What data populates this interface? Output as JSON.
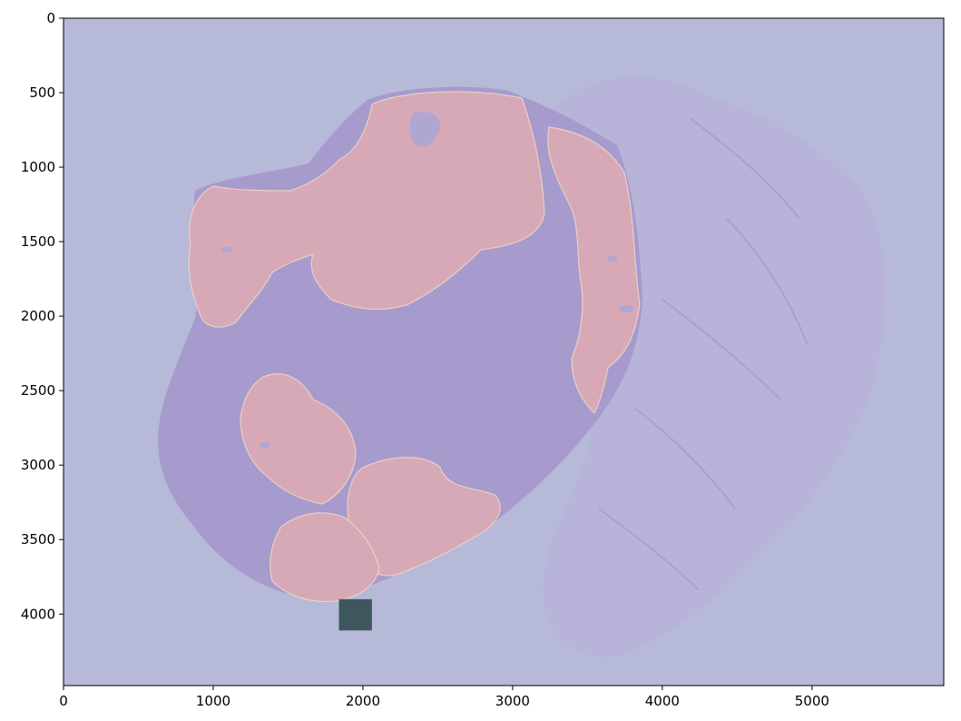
{
  "plot": {
    "x_axis": {
      "ticks": [
        0,
        1000,
        2000,
        3000,
        4000,
        5000
      ],
      "range": [
        0,
        5880
      ]
    },
    "y_axis": {
      "ticks": [
        0,
        500,
        1000,
        1500,
        2000,
        2500,
        3000,
        3500,
        4000
      ],
      "range": [
        0,
        4480
      ],
      "inverted": true
    },
    "grid": false,
    "legend": null
  },
  "image_content": {
    "description_note": "",
    "background_tint": "#b7b9d9",
    "tissue_tint": "#a69bcc",
    "tumor_overlay_color": "#d7a8b5",
    "patch_color": "#3d575c",
    "highlight_patch": {
      "x_range": [
        1840,
        2060
      ],
      "y_range": [
        3900,
        4110
      ]
    }
  }
}
